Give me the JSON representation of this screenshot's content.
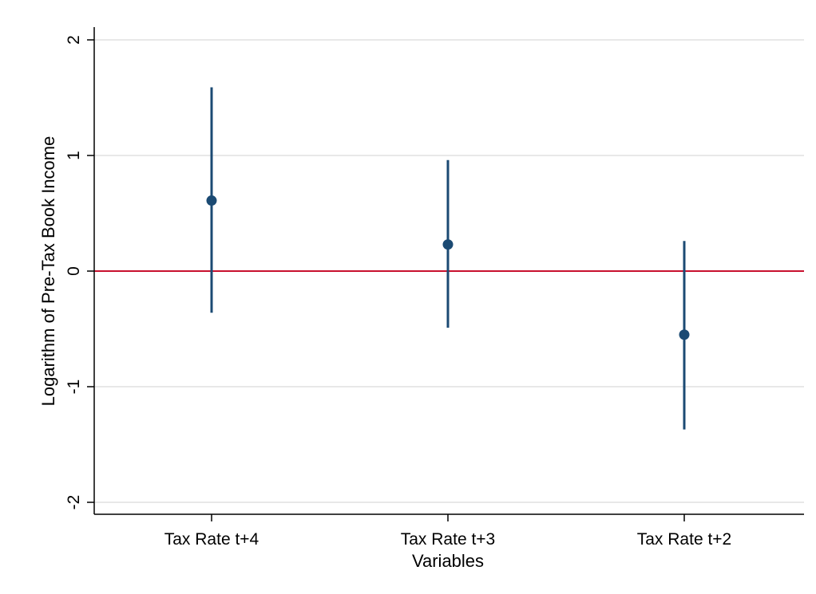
{
  "chart_data": {
    "type": "scatter",
    "subtype": "coefficient-plot-with-confidence-intervals",
    "title": "",
    "xlabel": "Variables",
    "ylabel": "Logarithm of Pre-Tax Book Income",
    "categories": [
      "Tax Rate t+4",
      "Tax Rate t+3",
      "Tax Rate t+2"
    ],
    "points": [
      {
        "category": "Tax Rate t+4",
        "estimate": 0.61,
        "ci_low": -0.36,
        "ci_high": 1.59
      },
      {
        "category": "Tax Rate t+3",
        "estimate": 0.23,
        "ci_low": -0.49,
        "ci_high": 0.96
      },
      {
        "category": "Tax Rate t+2",
        "estimate": -0.55,
        "ci_low": -1.37,
        "ci_high": 0.26
      }
    ],
    "ylim": [
      -2.1,
      2.1
    ],
    "yticks": [
      -2,
      -1,
      0,
      1,
      2
    ],
    "ytick_labels": [
      "-2",
      "-1",
      "0",
      "1",
      "2"
    ],
    "reference_line": {
      "y": 0,
      "color": "#c8102e"
    },
    "grid": true,
    "colors": {
      "marker": "#1b4a73",
      "grid": "#e8e8e8",
      "axis": "#000000"
    }
  }
}
